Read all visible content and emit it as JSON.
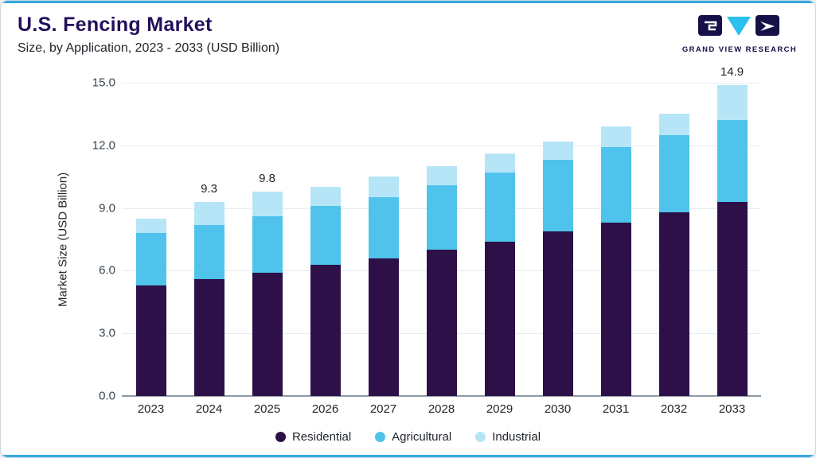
{
  "header": {
    "title": "U.S. Fencing Market",
    "subtitle": "Size, by Application, 2023 - 2033 (USD Billion)"
  },
  "logo": {
    "text": "GRAND VIEW RESEARCH",
    "navy": "#151047",
    "cyan": "#2bc0ef"
  },
  "chart_data": {
    "type": "bar",
    "stacked": true,
    "title": "U.S. Fencing Market Size, by Application, 2023 - 2033 (USD Billion)",
    "ylabel": "Market Size (USD Billion)",
    "xlabel": "",
    "ylim": [
      0,
      15
    ],
    "yticks": [
      0,
      3,
      6,
      9,
      12,
      15
    ],
    "grid": "horizontal",
    "legend_position": "bottom",
    "categories": [
      "2023",
      "2024",
      "2025",
      "2026",
      "2027",
      "2028",
      "2029",
      "2030",
      "2031",
      "2032",
      "2033"
    ],
    "series": [
      {
        "name": "Residential",
        "color": "#2d1048",
        "values": [
          5.3,
          5.6,
          5.9,
          6.3,
          6.6,
          7.0,
          7.4,
          7.9,
          8.3,
          8.8,
          9.3
        ]
      },
      {
        "name": "Agricultural",
        "color": "#4fc3ec",
        "values": [
          2.5,
          2.6,
          2.7,
          2.8,
          2.9,
          3.1,
          3.3,
          3.4,
          3.6,
          3.7,
          3.9
        ]
      },
      {
        "name": "Industrial",
        "color": "#b7e5f8",
        "values": [
          0.7,
          1.1,
          1.2,
          0.9,
          1.0,
          0.9,
          0.9,
          0.9,
          1.0,
          1.0,
          1.7
        ]
      }
    ],
    "totals": [
      8.5,
      9.3,
      9.8,
      10.0,
      10.5,
      11.0,
      11.6,
      12.2,
      12.9,
      13.5,
      14.9
    ],
    "bar_labels": [
      "",
      "9.3",
      "9.8",
      "",
      "",
      "",
      "",
      "",
      "",
      "",
      "14.9"
    ]
  }
}
